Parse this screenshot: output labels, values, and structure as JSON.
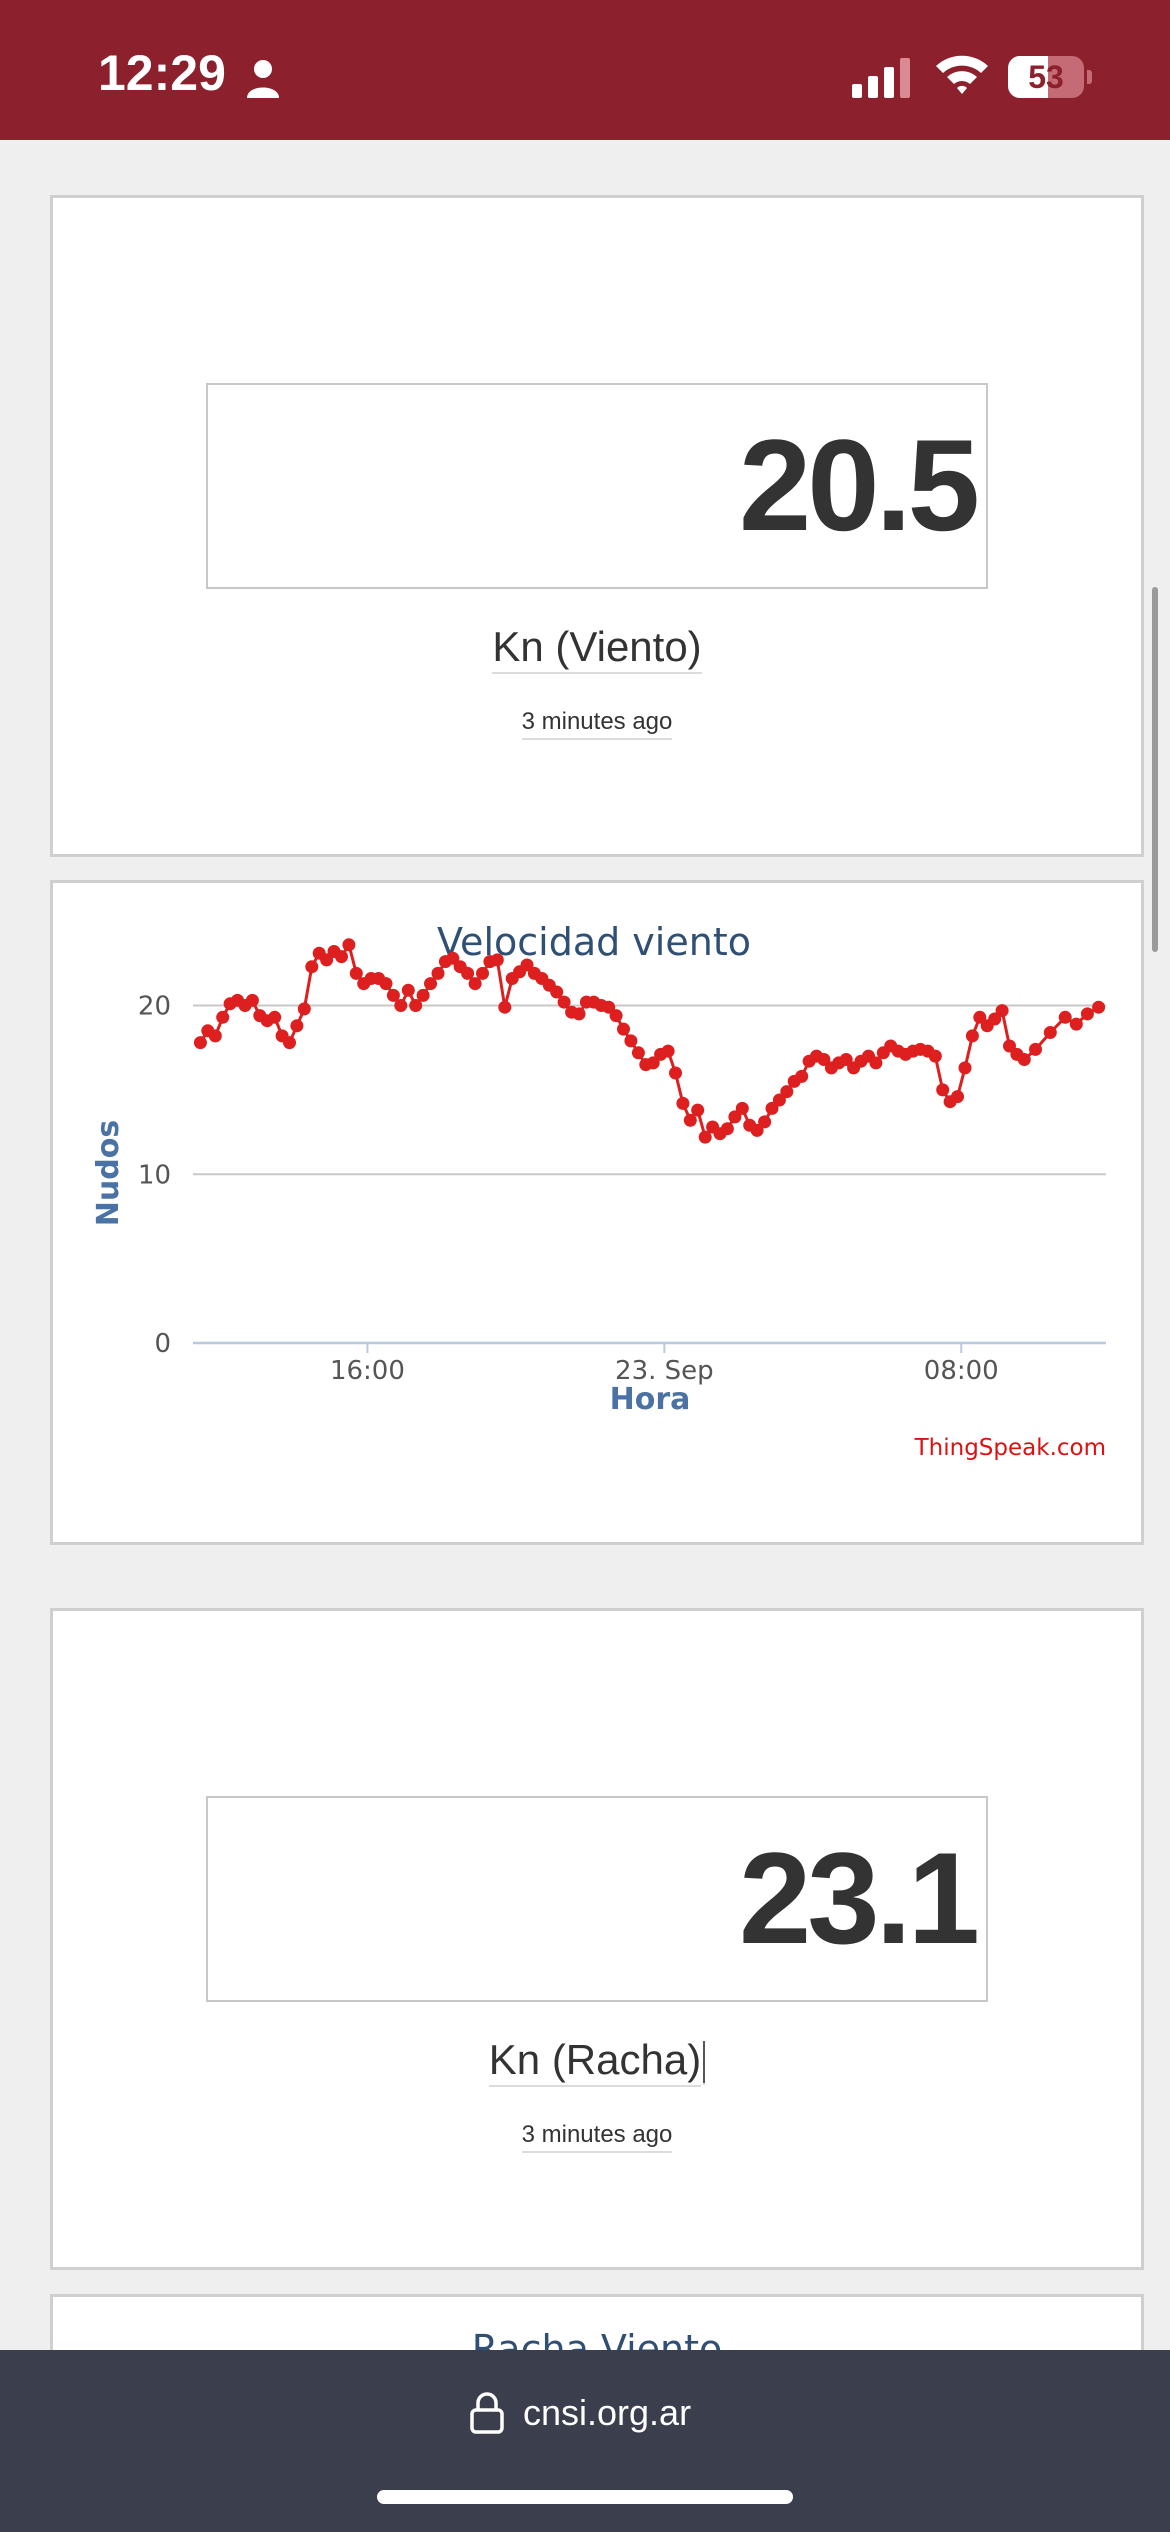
{
  "status_bar": {
    "time": "12:29",
    "battery_level": "53",
    "battery_fraction": 0.53,
    "icons": [
      "person-icon",
      "cellular-signal-icon",
      "wifi-icon",
      "battery-icon"
    ],
    "background_color": "#8c212d"
  },
  "widgets": [
    {
      "value": "20.5",
      "label": "Kn (Viento)",
      "updated": "3 minutes ago"
    },
    {
      "value": "23.1",
      "label": "Kn (Racha)",
      "updated": "3 minutes ago"
    }
  ],
  "next_chart_title": "Racha Viento",
  "chart_data": {
    "type": "line",
    "title": "Velocidad viento",
    "xlabel": "Hora",
    "ylabel": "Nudos",
    "credit": "ThingSpeak.com",
    "yticks": [
      0,
      10,
      20
    ],
    "ylim": [
      0,
      24
    ],
    "xticks": [
      "16:00",
      "23. Sep",
      "08:00"
    ],
    "xlim_hours": [
      11.3,
      35.9
    ],
    "xtick_hours": [
      16,
      24,
      32
    ],
    "series": [
      {
        "color": "#dd1f1f",
        "x_hours": [
          11.5,
          11.7,
          11.9,
          12.1,
          12.3,
          12.5,
          12.7,
          12.9,
          13.1,
          13.3,
          13.5,
          13.7,
          13.9,
          14.1,
          14.3,
          14.5,
          14.7,
          14.9,
          15.1,
          15.3,
          15.5,
          15.7,
          15.9,
          16.1,
          16.3,
          16.5,
          16.7,
          16.9,
          17.1,
          17.3,
          17.5,
          17.7,
          17.9,
          18.1,
          18.3,
          18.5,
          18.7,
          18.9,
          19.1,
          19.3,
          19.5,
          19.7,
          19.9,
          20.1,
          20.3,
          20.5,
          20.7,
          20.9,
          21.1,
          21.3,
          21.5,
          21.7,
          21.9,
          22.1,
          22.3,
          22.5,
          22.7,
          22.9,
          23.1,
          23.3,
          23.5,
          23.7,
          23.9,
          24.1,
          24.3,
          24.5,
          24.7,
          24.9,
          25.1,
          25.3,
          25.5,
          25.7,
          25.9,
          26.1,
          26.3,
          26.5,
          26.7,
          26.9,
          27.1,
          27.3,
          27.5,
          27.7,
          27.9,
          28.1,
          28.3,
          28.5,
          28.7,
          28.9,
          29.1,
          29.3,
          29.5,
          29.7,
          29.9,
          30.1,
          30.3,
          30.5,
          30.7,
          30.9,
          31.1,
          31.3,
          31.5,
          31.7,
          31.9,
          32.1,
          32.3,
          32.5,
          32.7,
          32.9,
          33.1,
          33.3,
          33.5,
          33.7,
          34.0,
          34.4,
          34.8,
          35.1,
          35.4,
          35.7
        ],
        "values": [
          17.8,
          18.5,
          18.2,
          19.3,
          20.1,
          20.3,
          20.0,
          20.3,
          19.4,
          19.1,
          19.3,
          18.2,
          17.8,
          18.8,
          19.8,
          22.3,
          23.1,
          22.7,
          23.2,
          22.9,
          23.6,
          21.9,
          21.3,
          21.6,
          21.6,
          21.3,
          20.6,
          20.0,
          20.9,
          20.0,
          20.6,
          21.3,
          21.9,
          22.6,
          22.8,
          22.3,
          21.9,
          21.3,
          21.9,
          22.6,
          22.7,
          19.9,
          21.6,
          22.0,
          22.4,
          21.9,
          21.6,
          21.2,
          20.8,
          20.2,
          19.6,
          19.5,
          20.2,
          20.2,
          20.0,
          19.9,
          19.4,
          18.6,
          17.9,
          17.2,
          16.5,
          16.6,
          17.1,
          17.3,
          16.0,
          14.2,
          13.2,
          13.8,
          12.2,
          12.8,
          12.4,
          12.7,
          13.4,
          13.9,
          12.9,
          12.6,
          13.1,
          13.9,
          14.4,
          14.9,
          15.5,
          15.8,
          16.7,
          17.0,
          16.8,
          16.3,
          16.6,
          16.8,
          16.3,
          16.7,
          17.0,
          16.6,
          17.2,
          17.6,
          17.3,
          17.1,
          17.3,
          17.4,
          17.3,
          17.0,
          15.0,
          14.3,
          14.6,
          16.3,
          18.2,
          19.3,
          18.8,
          19.2,
          19.7,
          17.6,
          17.1,
          16.8,
          17.4,
          18.4,
          19.3,
          18.9,
          19.5,
          19.9
        ]
      }
    ],
    "grid": true
  },
  "url_bar": {
    "url": "cnsi.org.ar"
  }
}
